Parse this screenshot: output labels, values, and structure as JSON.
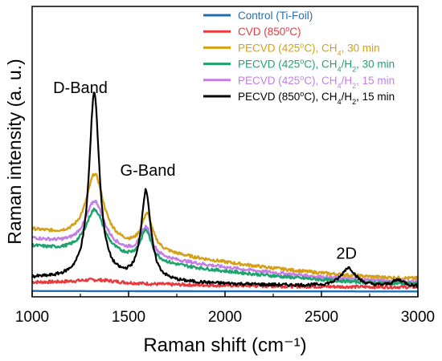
{
  "chart_data": {
    "type": "line",
    "xlabel": "Raman shift (cm⁻¹)",
    "ylabel": "Raman intensity (a. u.)",
    "xlim": [
      1000,
      3000
    ],
    "ylim": [
      0,
      100
    ],
    "xticks": [
      1000,
      1500,
      2000,
      2500,
      3000
    ],
    "xtick_labels": [
      "1000",
      "1500",
      "2000",
      "2500",
      "3000"
    ],
    "grid": false,
    "legend_position": "top-right",
    "annotations": [
      {
        "text": "D-Band",
        "x": 1250,
        "y": 92
      },
      {
        "text": "G-Band",
        "x": 1600,
        "y": 54
      },
      {
        "text": "2D",
        "x": 2630,
        "y": 16
      }
    ],
    "series": [
      {
        "name": "Control (Ti-Foil)",
        "color": "#1f6fb4",
        "shape": "flat",
        "baseline_start": 1.2,
        "baseline_end": 1.0
      },
      {
        "name": "CVD (850ºC)",
        "color": "#e8393f",
        "shape": "peaks",
        "baseline_start": 5.0,
        "baseline_end": 3.0,
        "peaks": [
          {
            "center": 1330,
            "height": 1.8,
            "width": 150
          }
        ]
      },
      {
        "name": "PECVD (425ºC), CH₄, 30 min",
        "color": "#d4a017",
        "shape": "peaks",
        "baseline_start": 29.0,
        "baseline_end": 7.0,
        "peaks": [
          {
            "center": 1325,
            "height": 31.0,
            "width": 55
          },
          {
            "center": 1595,
            "height": 16.0,
            "width": 35
          }
        ]
      },
      {
        "name": "PECVD (425ºC), CH₄/H₂, 15 min",
        "color": "#c47ee6",
        "shape": "peaks",
        "baseline_start": 25.0,
        "baseline_end": 5.5,
        "peaks": [
          {
            "center": 1325,
            "height": 22.0,
            "width": 60
          },
          {
            "center": 1590,
            "height": 13.0,
            "width": 35
          }
        ]
      },
      {
        "name": "PECVD (425ºC), CH₄/H₂, 30 min",
        "color": "#1fa36e",
        "shape": "peaks",
        "baseline_start": 21.5,
        "baseline_end": 4.5,
        "peaks": [
          {
            "center": 1325,
            "height": 21.0,
            "width": 60
          },
          {
            "center": 1590,
            "height": 14.0,
            "width": 35
          }
        ]
      },
      {
        "name": "PECVD (850ºC), CH₄/H₂, 15 min",
        "color": "#000000",
        "shape": "peaks",
        "baseline_start": 7.0,
        "baseline_end": 3.0,
        "peaks": [
          {
            "center": 1322,
            "height": 86.0,
            "width": 32
          },
          {
            "center": 1590,
            "height": 41.0,
            "width": 30
          },
          {
            "center": 2640,
            "height": 8.5,
            "width": 45
          },
          {
            "center": 2900,
            "height": 3.0,
            "width": 40
          }
        ]
      }
    ],
    "legend_entries": [
      {
        "parts": [
          {
            "t": "Control (Ti-Foil)"
          }
        ],
        "color": "#1f6fb4"
      },
      {
        "parts": [
          {
            "t": "CVD (850"
          },
          {
            "t": "o",
            "sup": true
          },
          {
            "t": "C)"
          }
        ],
        "color": "#e8393f"
      },
      {
        "parts": [
          {
            "t": "PECVD (425"
          },
          {
            "t": "o",
            "sup": true
          },
          {
            "t": "C), CH"
          },
          {
            "t": "4",
            "sub": true
          },
          {
            "t": ", 30 min"
          }
        ],
        "color": "#d4a017"
      },
      {
        "parts": [
          {
            "t": "PECVD (425"
          },
          {
            "t": "o",
            "sup": true
          },
          {
            "t": "C), CH"
          },
          {
            "t": "4",
            "sub": true
          },
          {
            "t": "/H"
          },
          {
            "t": "2",
            "sub": true
          },
          {
            "t": ", 30 min"
          }
        ],
        "color": "#1fa36e"
      },
      {
        "parts": [
          {
            "t": "PECVD (425"
          },
          {
            "t": "o",
            "sup": true
          },
          {
            "t": "C), CH"
          },
          {
            "t": "4",
            "sub": true
          },
          {
            "t": "/H"
          },
          {
            "t": "2",
            "sub": true
          },
          {
            "t": ", 15 min"
          }
        ],
        "color": "#c47ee6"
      },
      {
        "parts": [
          {
            "t": "PECVD (850"
          },
          {
            "t": "o",
            "sup": true
          },
          {
            "t": "C), CH"
          },
          {
            "t": "4",
            "sub": true
          },
          {
            "t": "/H"
          },
          {
            "t": "2",
            "sub": true
          },
          {
            "t": ", 15 min"
          }
        ],
        "color": "#000000"
      }
    ]
  }
}
